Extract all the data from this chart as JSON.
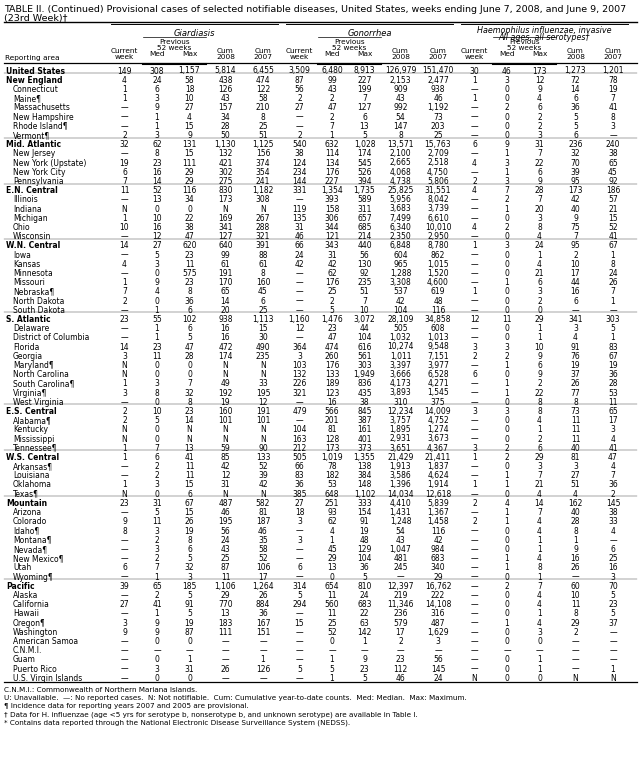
{
  "title1": "TABLE II. (Continued) Provisional cases of selected notifiable diseases, United States, weeks ending June 7, 2008, and June 9, 2007",
  "title2": "(23rd Week)†",
  "diseases": [
    "Giardiasis",
    "Gonorrhea",
    "Haemophilus influenzae, invasive\nAll ages, all serotypes†"
  ],
  "col_headers": [
    "Current\nweek",
    "Med",
    "Max",
    "Cum\n2008",
    "Cum\n2007"
  ],
  "rows": [
    [
      "United States",
      "149",
      "308",
      "1,157",
      "5,814",
      "6,455",
      "3,509",
      "6,480",
      "8,913",
      "126,979",
      "151,470",
      "30",
      "46",
      "173",
      "1,273",
      "1,201"
    ],
    [
      "New England",
      "4",
      "24",
      "58",
      "438",
      "474",
      "87",
      "99",
      "227",
      "2,153",
      "2,477",
      "1",
      "3",
      "12",
      "72",
      "78"
    ],
    [
      "Connecticut",
      "1",
      "6",
      "18",
      "126",
      "122",
      "56",
      "43",
      "199",
      "909",
      "938",
      "—",
      "0",
      "9",
      "14",
      "19"
    ],
    [
      "Maine¶",
      "1",
      "3",
      "10",
      "43",
      "58",
      "2",
      "2",
      "7",
      "43",
      "46",
      "1",
      "0",
      "4",
      "6",
      "7"
    ],
    [
      "Massachusetts",
      "—",
      "9",
      "27",
      "157",
      "210",
      "27",
      "47",
      "127",
      "992",
      "1,192",
      "—",
      "2",
      "6",
      "36",
      "41"
    ],
    [
      "New Hampshire",
      "—",
      "1",
      "4",
      "34",
      "8",
      "—",
      "2",
      "6",
      "54",
      "73",
      "—",
      "0",
      "2",
      "5",
      "8"
    ],
    [
      "Rhode Island¶",
      "—",
      "1",
      "15",
      "28",
      "25",
      "—",
      "7",
      "13",
      "147",
      "203",
      "—",
      "0",
      "2",
      "5",
      "3"
    ],
    [
      "Vermont¶",
      "2",
      "3",
      "9",
      "50",
      "51",
      "2",
      "1",
      "5",
      "8",
      "25",
      "—",
      "0",
      "3",
      "6",
      "—"
    ],
    [
      "Mid. Atlantic",
      "32",
      "62",
      "131",
      "1,130",
      "1,125",
      "540",
      "632",
      "1,028",
      "13,571",
      "15,763",
      "6",
      "9",
      "31",
      "236",
      "240"
    ],
    [
      "New Jersey",
      "—",
      "8",
      "15",
      "132",
      "156",
      "38",
      "114",
      "174",
      "2,100",
      "2,709",
      "—",
      "1",
      "7",
      "32",
      "38"
    ],
    [
      "New York (Upstate)",
      "19",
      "23",
      "111",
      "421",
      "374",
      "124",
      "134",
      "545",
      "2,665",
      "2,518",
      "4",
      "3",
      "22",
      "70",
      "65"
    ],
    [
      "New York City",
      "6",
      "16",
      "29",
      "302",
      "354",
      "234",
      "176",
      "526",
      "4,068",
      "4,750",
      "—",
      "1",
      "6",
      "39",
      "45"
    ],
    [
      "Pennsylvania",
      "7",
      "14",
      "29",
      "275",
      "241",
      "144",
      "227",
      "394",
      "4,738",
      "5,806",
      "2",
      "3",
      "9",
      "95",
      "92"
    ],
    [
      "E.N. Central",
      "11",
      "52",
      "116",
      "830",
      "1,182",
      "331",
      "1,354",
      "1,735",
      "25,825",
      "31,551",
      "4",
      "7",
      "28",
      "173",
      "186"
    ],
    [
      "Illinois",
      "—",
      "13",
      "34",
      "173",
      "308",
      "—",
      "393",
      "589",
      "5,956",
      "8,042",
      "—",
      "2",
      "7",
      "42",
      "57"
    ],
    [
      "Indiana",
      "N",
      "0",
      "0",
      "N",
      "N",
      "119",
      "158",
      "311",
      "3,683",
      "3,739",
      "—",
      "1",
      "20",
      "40",
      "21"
    ],
    [
      "Michigan",
      "1",
      "10",
      "22",
      "169",
      "267",
      "135",
      "306",
      "657",
      "7,499",
      "6,610",
      "—",
      "0",
      "3",
      "9",
      "15"
    ],
    [
      "Ohio",
      "10",
      "16",
      "38",
      "341",
      "288",
      "31",
      "344",
      "685",
      "6,340",
      "10,010",
      "4",
      "2",
      "8",
      "75",
      "52"
    ],
    [
      "Wisconsin",
      "—",
      "12",
      "47",
      "127",
      "321",
      "46",
      "121",
      "214",
      "2,350",
      "2,950",
      "—",
      "0",
      "4",
      "7",
      "41"
    ],
    [
      "W.N. Central",
      "14",
      "27",
      "620",
      "640",
      "391",
      "66",
      "343",
      "440",
      "6,848",
      "8,780",
      "1",
      "3",
      "24",
      "95",
      "67"
    ],
    [
      "Iowa",
      "—",
      "5",
      "23",
      "99",
      "88",
      "24",
      "31",
      "56",
      "604",
      "862",
      "—",
      "0",
      "1",
      "2",
      "1"
    ],
    [
      "Kansas",
      "4",
      "3",
      "11",
      "61",
      "61",
      "42",
      "42",
      "130",
      "965",
      "1,015",
      "—",
      "0",
      "4",
      "10",
      "8"
    ],
    [
      "Minnesota",
      "—",
      "0",
      "575",
      "191",
      "8",
      "—",
      "62",
      "92",
      "1,288",
      "1,520",
      "—",
      "0",
      "21",
      "17",
      "24"
    ],
    [
      "Missouri",
      "1",
      "9",
      "23",
      "170",
      "160",
      "—",
      "176",
      "235",
      "3,308",
      "4,600",
      "—",
      "1",
      "6",
      "44",
      "26"
    ],
    [
      "Nebraska¶",
      "7",
      "4",
      "8",
      "65",
      "45",
      "—",
      "25",
      "51",
      "537",
      "619",
      "1",
      "0",
      "3",
      "16",
      "7"
    ],
    [
      "North Dakota",
      "2",
      "0",
      "36",
      "14",
      "6",
      "—",
      "2",
      "7",
      "42",
      "48",
      "—",
      "0",
      "2",
      "6",
      "1"
    ],
    [
      "South Dakota",
      "—",
      "1",
      "6",
      "20",
      "25",
      "—",
      "5",
      "10",
      "104",
      "116",
      "—",
      "0",
      "0",
      "—",
      "—"
    ],
    [
      "S. Atlantic",
      "23",
      "55",
      "102",
      "938",
      "1,113",
      "1,160",
      "1,476",
      "3,072",
      "28,109",
      "34,858",
      "12",
      "11",
      "29",
      "341",
      "303"
    ],
    [
      "Delaware",
      "—",
      "1",
      "6",
      "16",
      "15",
      "12",
      "23",
      "44",
      "505",
      "608",
      "—",
      "0",
      "1",
      "3",
      "5"
    ],
    [
      "District of Columbia",
      "—",
      "1",
      "5",
      "16",
      "30",
      "—",
      "47",
      "104",
      "1,032",
      "1,013",
      "—",
      "0",
      "1",
      "4",
      "1"
    ],
    [
      "Florida",
      "14",
      "23",
      "47",
      "472",
      "490",
      "364",
      "474",
      "616",
      "10,274",
      "9,548",
      "3",
      "3",
      "10",
      "91",
      "83"
    ],
    [
      "Georgia",
      "3",
      "11",
      "28",
      "174",
      "235",
      "3",
      "260",
      "561",
      "1,011",
      "7,151",
      "2",
      "2",
      "9",
      "76",
      "67"
    ],
    [
      "Maryland¶",
      "N",
      "0",
      "0",
      "N",
      "N",
      "103",
      "176",
      "303",
      "3,397",
      "3,977",
      "—",
      "1",
      "6",
      "19",
      "19"
    ],
    [
      "North Carolina",
      "N",
      "0",
      "0",
      "N",
      "N",
      "132",
      "133",
      "1,949",
      "3,666",
      "6,528",
      "6",
      "0",
      "9",
      "37",
      "36"
    ],
    [
      "South Carolina¶",
      "1",
      "3",
      "7",
      "49",
      "33",
      "226",
      "189",
      "836",
      "4,173",
      "4,271",
      "—",
      "1",
      "2",
      "26",
      "28"
    ],
    [
      "Virginia¶",
      "3",
      "8",
      "32",
      "192",
      "195",
      "321",
      "123",
      "435",
      "3,893",
      "1,545",
      "—",
      "1",
      "22",
      "77",
      "53"
    ],
    [
      "West Virginia",
      "—",
      "0",
      "8",
      "19",
      "12",
      "—",
      "16",
      "38",
      "310",
      "375",
      "—",
      "0",
      "8",
      "8",
      "11"
    ],
    [
      "E.S. Central",
      "2",
      "10",
      "23",
      "160",
      "191",
      "479",
      "566",
      "845",
      "12,234",
      "14,009",
      "3",
      "3",
      "8",
      "73",
      "65"
    ],
    [
      "Alabama¶",
      "2",
      "5",
      "14",
      "101",
      "101",
      "—",
      "201",
      "387",
      "3,757",
      "4,752",
      "—",
      "0",
      "4",
      "11",
      "17"
    ],
    [
      "Kentucky",
      "N",
      "0",
      "N",
      "N",
      "N",
      "104",
      "81",
      "161",
      "1,895",
      "1,274",
      "—",
      "0",
      "1",
      "11",
      "3"
    ],
    [
      "Mississippi",
      "N",
      "0",
      "N",
      "N",
      "N",
      "163",
      "128",
      "401",
      "2,931",
      "3,673",
      "—",
      "0",
      "2",
      "11",
      "4"
    ],
    [
      "Tennessee¶",
      "1",
      "7",
      "13",
      "59",
      "90",
      "212",
      "173",
      "373",
      "3,651",
      "4,367",
      "3",
      "2",
      "6",
      "40",
      "41"
    ],
    [
      "W.S. Central",
      "1",
      "6",
      "41",
      "85",
      "133",
      "505",
      "1,019",
      "1,355",
      "21,429",
      "21,411",
      "1",
      "2",
      "29",
      "81",
      "47"
    ],
    [
      "Arkansas¶",
      "—",
      "2",
      "11",
      "42",
      "52",
      "66",
      "78",
      "138",
      "1,913",
      "1,837",
      "—",
      "0",
      "3",
      "3",
      "4"
    ],
    [
      "Louisiana",
      "—",
      "2",
      "11",
      "12",
      "39",
      "83",
      "182",
      "384",
      "3,586",
      "4,624",
      "—",
      "1",
      "7",
      "27",
      "7"
    ],
    [
      "Oklahoma",
      "1",
      "3",
      "15",
      "31",
      "42",
      "36",
      "53",
      "148",
      "1,396",
      "1,914",
      "1",
      "1",
      "21",
      "51",
      "36"
    ],
    [
      "Texas¶",
      "N",
      "0",
      "6",
      "N",
      "N",
      "385",
      "648",
      "1,102",
      "14,034",
      "12,618",
      "—",
      "0",
      "4",
      "4",
      "2"
    ],
    [
      "Mountain",
      "23",
      "31",
      "67",
      "487",
      "582",
      "27",
      "251",
      "333",
      "4,410",
      "5,839",
      "2",
      "4",
      "14",
      "162",
      "145"
    ],
    [
      "Arizona",
      "—",
      "5",
      "15",
      "46",
      "81",
      "18",
      "93",
      "154",
      "1,431",
      "1,367",
      "—",
      "1",
      "7",
      "40",
      "38"
    ],
    [
      "Colorado",
      "9",
      "11",
      "26",
      "195",
      "187",
      "3",
      "62",
      "91",
      "1,248",
      "1,458",
      "2",
      "1",
      "4",
      "28",
      "33"
    ],
    [
      "Idaho¶",
      "8",
      "3",
      "19",
      "56",
      "46",
      "—",
      "4",
      "19",
      "54",
      "116",
      "—",
      "0",
      "4",
      "8",
      "4"
    ],
    [
      "Montana¶",
      "—",
      "2",
      "8",
      "24",
      "35",
      "3",
      "1",
      "48",
      "43",
      "42",
      "—",
      "0",
      "1",
      "1",
      "—"
    ],
    [
      "Nevada¶",
      "—",
      "3",
      "6",
      "43",
      "58",
      "—",
      "45",
      "129",
      "1,047",
      "984",
      "—",
      "0",
      "1",
      "9",
      "6"
    ],
    [
      "New Mexico¶",
      "—",
      "2",
      "5",
      "25",
      "52",
      "—",
      "29",
      "104",
      "481",
      "683",
      "—",
      "1",
      "4",
      "16",
      "25"
    ],
    [
      "Utah",
      "6",
      "7",
      "32",
      "87",
      "106",
      "6",
      "13",
      "36",
      "245",
      "340",
      "—",
      "1",
      "8",
      "26",
      "16"
    ],
    [
      "Wyoming¶",
      "—",
      "1",
      "3",
      "11",
      "17",
      "—",
      "0",
      "5",
      "—",
      "29",
      "—",
      "0",
      "1",
      "—",
      "3"
    ],
    [
      "Pacific",
      "39",
      "65",
      "185",
      "1,106",
      "1,264",
      "314",
      "654",
      "810",
      "12,397",
      "16,762",
      "—",
      "2",
      "7",
      "60",
      "70"
    ],
    [
      "Alaska",
      "—",
      "2",
      "5",
      "29",
      "26",
      "5",
      "11",
      "24",
      "219",
      "222",
      "—",
      "0",
      "4",
      "10",
      "5"
    ],
    [
      "California",
      "27",
      "41",
      "91",
      "770",
      "884",
      "294",
      "560",
      "683",
      "11,346",
      "14,108",
      "—",
      "0",
      "4",
      "11",
      "23"
    ],
    [
      "Hawaii",
      "—",
      "1",
      "5",
      "13",
      "36",
      "—",
      "11",
      "22",
      "236",
      "316",
      "—",
      "0",
      "1",
      "8",
      "5"
    ],
    [
      "Oregon¶",
      "3",
      "9",
      "19",
      "183",
      "167",
      "15",
      "25",
      "63",
      "579",
      "487",
      "—",
      "1",
      "4",
      "29",
      "37"
    ],
    [
      "Washington",
      "9",
      "9",
      "87",
      "111",
      "151",
      "—",
      "52",
      "142",
      "17",
      "1,629",
      "—",
      "0",
      "3",
      "2",
      "—"
    ],
    [
      "American Samoa",
      "—",
      "0",
      "0",
      "—",
      "—",
      "—",
      "0",
      "1",
      "2",
      "3",
      "—",
      "0",
      "0",
      "—",
      "—"
    ],
    [
      "C.N.M.I.",
      "—",
      "—",
      "—",
      "—",
      "—",
      "—",
      "—",
      "—",
      "—",
      "—",
      "—",
      "—",
      "—",
      "—",
      "—"
    ],
    [
      "Guam",
      "—",
      "0",
      "1",
      "—",
      "1",
      "—",
      "1",
      "9",
      "23",
      "56",
      "—",
      "0",
      "1",
      "—",
      "—"
    ],
    [
      "Puerto Rico",
      "—",
      "3",
      "31",
      "26",
      "126",
      "5",
      "5",
      "23",
      "112",
      "145",
      "—",
      "0",
      "1",
      "—",
      "1"
    ],
    [
      "U.S. Virgin Islands",
      "—",
      "0",
      "0",
      "—",
      "—",
      "—",
      "1",
      "5",
      "46",
      "24",
      "N",
      "0",
      "0",
      "N",
      "N"
    ]
  ],
  "footnotes": [
    "C.N.M.I.: Commonwealth of Northern Mariana Islands.",
    "U: Unavailable.  —: No reported cases.  N: Not notifiable.  Cum: Cumulative year-to-date counts.  Med: Median.  Max: Maximum.",
    "¶ Incidence data for reporting years 2007 and 2005 are provisional.",
    "† Data for H. influenzae (age <5 yrs for serotype b, nonserotype b, and unknown serotype) are available in Table I.",
    "* Contains data reported through the National Electronic Disease Surveillance System (NEDSS)."
  ],
  "section_rows": [
    "United States",
    "New England",
    "Mid. Atlantic",
    "E.N. Central",
    "W.N. Central",
    "S. Atlantic",
    "E.S. Central",
    "W.S. Central",
    "Mountain",
    "Pacific"
  ]
}
